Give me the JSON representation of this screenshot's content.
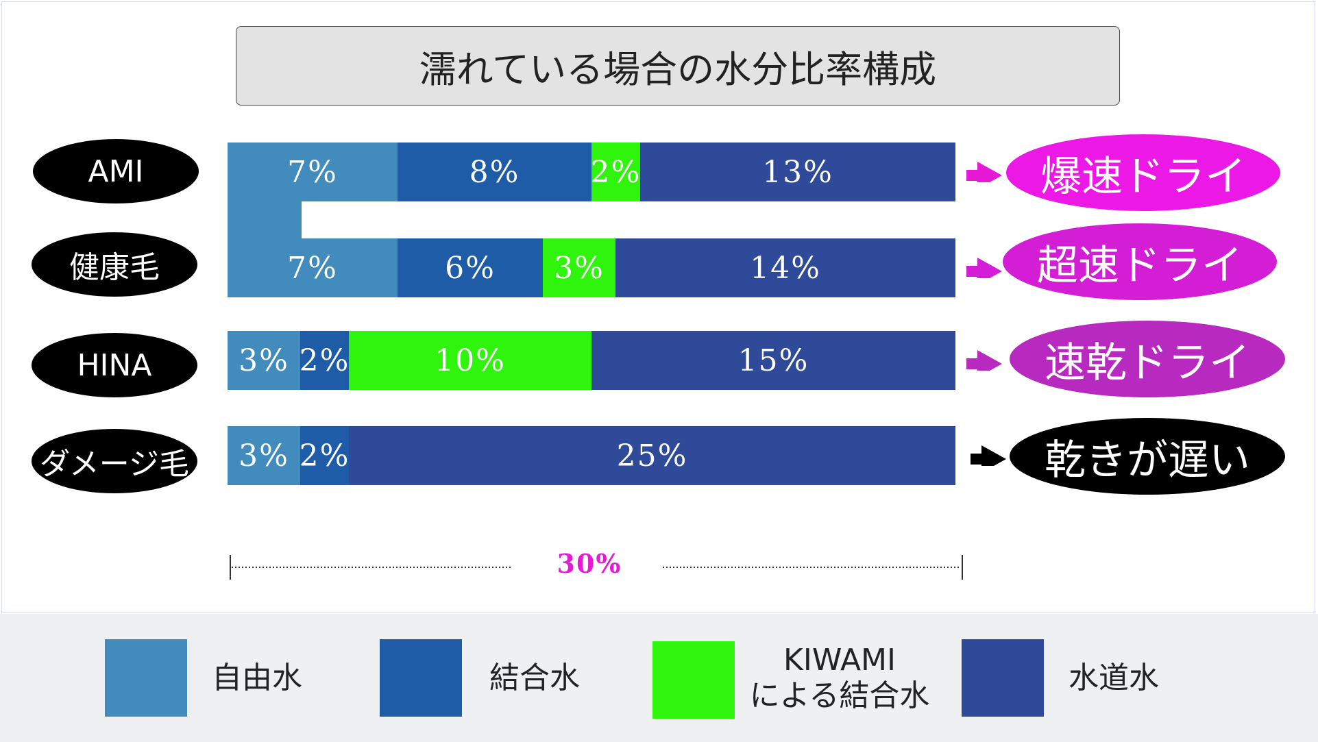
{
  "chart_data": {
    "type": "bar",
    "orientation": "horizontal-stacked",
    "title": "濡れている場合の水分比率構成",
    "categories": [
      "AMI",
      "健康毛",
      "HINA",
      "ダメージ毛"
    ],
    "series": [
      {
        "name": "自由水",
        "values": [
          7,
          7,
          3,
          3
        ],
        "labels": [
          "7%",
          "7%",
          "3%",
          "3%"
        ],
        "color": "#418bbd"
      },
      {
        "name": "結合水",
        "values": [
          8,
          6,
          2,
          2
        ],
        "labels": [
          "8%",
          "6%",
          "2%",
          "2%"
        ],
        "color": "#1f5ca8"
      },
      {
        "name": "KIWAMIによる結合水",
        "values": [
          2,
          3,
          10,
          0
        ],
        "labels": [
          "2%",
          "3%",
          "10%",
          ""
        ],
        "color": "#2ef50b"
      },
      {
        "name": "水道水",
        "values": [
          13,
          14,
          15,
          25
        ],
        "labels": [
          "13%",
          "14%",
          "15%",
          "25%"
        ],
        "color": "#2f4a98"
      }
    ],
    "total_label": "30%",
    "xlim": [
      0,
      30
    ],
    "outcomes": [
      {
        "label": "爆速ドライ",
        "color": "#ec18e5",
        "arrow_color": "#e61ad6"
      },
      {
        "label": "超速ドライ",
        "color": "#d41ed6",
        "arrow_color": "#d41ed6"
      },
      {
        "label": "速乾ドライ",
        "color": "#b829bf",
        "arrow_color": "#b829bf"
      },
      {
        "label": "乾きが遅い",
        "color": "#000000",
        "arrow_color": "#000000"
      }
    ],
    "legend": {
      "items": [
        {
          "lines": [
            "自由水"
          ],
          "color": "#418bbd"
        },
        {
          "lines": [
            "結合水"
          ],
          "color": "#1f5ca8"
        },
        {
          "lines": [
            "KIWAMI",
            "による結合水"
          ],
          "color": "#2ef50b"
        },
        {
          "lines": [
            "水道水"
          ],
          "color": "#2f4a98"
        }
      ]
    }
  }
}
